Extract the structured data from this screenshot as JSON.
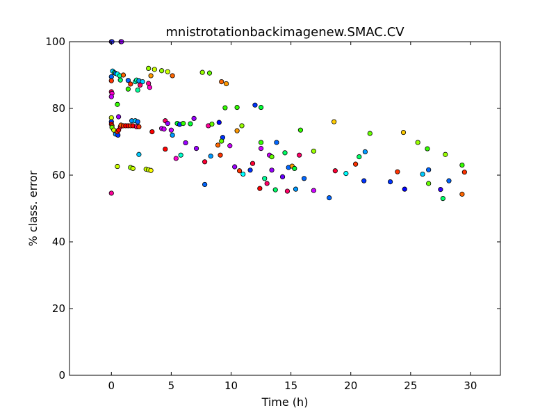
{
  "chart_data": {
    "type": "scatter",
    "title": "mnistrotationbackimagenew.SMAC.CV",
    "xlabel": "Time (h)",
    "ylabel": "% class. error",
    "xlim": [
      -3.5,
      32.5
    ],
    "ylim": [
      0,
      100
    ],
    "xticks": [
      0,
      5,
      10,
      15,
      20,
      25,
      30
    ],
    "yticks": [
      0,
      20,
      40,
      60,
      80,
      100
    ],
    "grid": false,
    "legend": "none",
    "points": [
      {
        "x": 0.0,
        "y": 100.0,
        "color": "#9900ff"
      },
      {
        "x": 0.05,
        "y": 100.0,
        "color": "#3333ff"
      },
      {
        "x": 0.8,
        "y": 100.0,
        "color": "#ff00cc"
      },
      {
        "x": 0.85,
        "y": 100.0,
        "color": "#9900ff"
      },
      {
        "x": 0.1,
        "y": 91.2,
        "color": "#00ccff"
      },
      {
        "x": 0.25,
        "y": 90.7,
        "color": "#00ff66"
      },
      {
        "x": 0.35,
        "y": 90.5,
        "color": "#0066ff"
      },
      {
        "x": 0.5,
        "y": 90.3,
        "color": "#00ffff"
      },
      {
        "x": 0.7,
        "y": 89.8,
        "color": "#00ff99"
      },
      {
        "x": 0.0,
        "y": 89.5,
        "color": "#0066ff"
      },
      {
        "x": 1.0,
        "y": 90.0,
        "color": "#ff6600"
      },
      {
        "x": 0.0,
        "y": 88.3,
        "color": "#ff3300"
      },
      {
        "x": 1.4,
        "y": 88.4,
        "color": "#0066ff"
      },
      {
        "x": 0.75,
        "y": 88.5,
        "color": "#00ff66"
      },
      {
        "x": 2.0,
        "y": 88.0,
        "color": "#00ffcc"
      },
      {
        "x": 2.1,
        "y": 88.5,
        "color": "#00ff99"
      },
      {
        "x": 2.3,
        "y": 88.3,
        "color": "#0099ff"
      },
      {
        "x": 2.6,
        "y": 88.0,
        "color": "#00ccff"
      },
      {
        "x": 1.6,
        "y": 87.3,
        "color": "#ff3300"
      },
      {
        "x": 2.4,
        "y": 87.0,
        "color": "#ff0066"
      },
      {
        "x": 3.1,
        "y": 87.5,
        "color": "#ff0099"
      },
      {
        "x": 3.2,
        "y": 86.3,
        "color": "#ff00cc"
      },
      {
        "x": 1.4,
        "y": 85.8,
        "color": "#33ff00"
      },
      {
        "x": 2.2,
        "y": 85.5,
        "color": "#00ff99"
      },
      {
        "x": 3.1,
        "y": 92.0,
        "color": "#99ff00"
      },
      {
        "x": 3.6,
        "y": 91.7,
        "color": "#ccff00"
      },
      {
        "x": 4.2,
        "y": 91.3,
        "color": "#99ff00"
      },
      {
        "x": 4.7,
        "y": 91.0,
        "color": "#ccff00"
      },
      {
        "x": 3.3,
        "y": 89.8,
        "color": "#ff9900"
      },
      {
        "x": 5.1,
        "y": 89.8,
        "color": "#ff6600"
      },
      {
        "x": 7.6,
        "y": 90.8,
        "color": "#99ff00"
      },
      {
        "x": 8.2,
        "y": 90.6,
        "color": "#66ff00"
      },
      {
        "x": 9.2,
        "y": 88.0,
        "color": "#ff6600"
      },
      {
        "x": 9.6,
        "y": 87.4,
        "color": "#ff9900"
      },
      {
        "x": 0.0,
        "y": 85.0,
        "color": "#ff0066"
      },
      {
        "x": 0.05,
        "y": 84.5,
        "color": "#ff00cc"
      },
      {
        "x": 0.0,
        "y": 83.5,
        "color": "#cc00ff"
      },
      {
        "x": 0.5,
        "y": 81.2,
        "color": "#33ff00"
      },
      {
        "x": 9.5,
        "y": 80.2,
        "color": "#33ff00"
      },
      {
        "x": 10.5,
        "y": 80.3,
        "color": "#33ff00"
      },
      {
        "x": 12.0,
        "y": 81.0,
        "color": "#0033ff"
      },
      {
        "x": 12.5,
        "y": 80.3,
        "color": "#00ff33"
      },
      {
        "x": 0.0,
        "y": 77.2,
        "color": "#ccff00"
      },
      {
        "x": 0.6,
        "y": 77.5,
        "color": "#9900ff"
      },
      {
        "x": 0.0,
        "y": 76.0,
        "color": "#0033ff"
      },
      {
        "x": 0.0,
        "y": 75.3,
        "color": "#ff0000"
      },
      {
        "x": 0.05,
        "y": 74.8,
        "color": "#ff3300"
      },
      {
        "x": 0.05,
        "y": 74.3,
        "color": "#66ff00"
      },
      {
        "x": 0.2,
        "y": 73.5,
        "color": "#ccff00"
      },
      {
        "x": 0.35,
        "y": 72.3,
        "color": "#0099ff"
      },
      {
        "x": 0.55,
        "y": 72.0,
        "color": "#0033ff"
      },
      {
        "x": 0.5,
        "y": 73.0,
        "color": "#ff3300"
      },
      {
        "x": 0.6,
        "y": 73.5,
        "color": "#ff0000"
      },
      {
        "x": 0.75,
        "y": 74.5,
        "color": "#ff0033"
      },
      {
        "x": 0.8,
        "y": 75.0,
        "color": "#ff6600"
      },
      {
        "x": 1.0,
        "y": 74.8,
        "color": "#ff3300"
      },
      {
        "x": 1.2,
        "y": 74.8,
        "color": "#ff0000"
      },
      {
        "x": 1.4,
        "y": 74.8,
        "color": "#ff0000"
      },
      {
        "x": 1.6,
        "y": 74.8,
        "color": "#ff3300"
      },
      {
        "x": 1.7,
        "y": 76.3,
        "color": "#0099ff"
      },
      {
        "x": 1.8,
        "y": 74.8,
        "color": "#ff0000"
      },
      {
        "x": 2.0,
        "y": 76.3,
        "color": "#00ccff"
      },
      {
        "x": 2.1,
        "y": 74.5,
        "color": "#ff0066"
      },
      {
        "x": 2.2,
        "y": 76.0,
        "color": "#0066ff"
      },
      {
        "x": 2.3,
        "y": 74.5,
        "color": "#ff3300"
      },
      {
        "x": 3.4,
        "y": 73.0,
        "color": "#ff0000"
      },
      {
        "x": 4.2,
        "y": 74.0,
        "color": "#cc00ff"
      },
      {
        "x": 4.4,
        "y": 73.8,
        "color": "#cc00ff"
      },
      {
        "x": 4.5,
        "y": 76.3,
        "color": "#ff0066"
      },
      {
        "x": 4.7,
        "y": 75.5,
        "color": "#9900ff"
      },
      {
        "x": 5.0,
        "y": 73.5,
        "color": "#cc00ff"
      },
      {
        "x": 5.1,
        "y": 72.0,
        "color": "#0099ff"
      },
      {
        "x": 5.5,
        "y": 75.5,
        "color": "#00ff33"
      },
      {
        "x": 5.7,
        "y": 75.2,
        "color": "#0033ff"
      },
      {
        "x": 6.0,
        "y": 75.5,
        "color": "#33ff00"
      },
      {
        "x": 6.6,
        "y": 75.4,
        "color": "#00ff33"
      },
      {
        "x": 6.9,
        "y": 77.0,
        "color": "#9900ff"
      },
      {
        "x": 8.1,
        "y": 74.8,
        "color": "#ff0099"
      },
      {
        "x": 8.4,
        "y": 75.3,
        "color": "#66ff00"
      },
      {
        "x": 9.0,
        "y": 75.8,
        "color": "#0000ff"
      },
      {
        "x": 9.3,
        "y": 71.3,
        "color": "#0033ff"
      },
      {
        "x": 9.2,
        "y": 70.2,
        "color": "#66ff00"
      },
      {
        "x": 8.9,
        "y": 69.0,
        "color": "#ff6600"
      },
      {
        "x": 10.5,
        "y": 73.3,
        "color": "#ff9900"
      },
      {
        "x": 10.9,
        "y": 74.8,
        "color": "#99ff00"
      },
      {
        "x": 4.5,
        "y": 67.8,
        "color": "#ff0000"
      },
      {
        "x": 5.4,
        "y": 65.0,
        "color": "#ff00cc"
      },
      {
        "x": 5.8,
        "y": 66.0,
        "color": "#00ffcc"
      },
      {
        "x": 6.2,
        "y": 69.7,
        "color": "#9900ff"
      },
      {
        "x": 7.1,
        "y": 68.0,
        "color": "#9900ff"
      },
      {
        "x": 2.3,
        "y": 66.2,
        "color": "#00ccff"
      },
      {
        "x": 7.8,
        "y": 64.0,
        "color": "#ff0033"
      },
      {
        "x": 8.3,
        "y": 65.7,
        "color": "#0099ff"
      },
      {
        "x": 9.1,
        "y": 66.0,
        "color": "#ff3300"
      },
      {
        "x": 9.9,
        "y": 68.8,
        "color": "#cc00ff"
      },
      {
        "x": 10.3,
        "y": 62.5,
        "color": "#9900ff"
      },
      {
        "x": 10.7,
        "y": 61.3,
        "color": "#ff3300"
      },
      {
        "x": 11.0,
        "y": 60.3,
        "color": "#00ffff"
      },
      {
        "x": 11.6,
        "y": 61.5,
        "color": "#0033ff"
      },
      {
        "x": 11.8,
        "y": 63.5,
        "color": "#ff0033"
      },
      {
        "x": 12.5,
        "y": 69.8,
        "color": "#33ff00"
      },
      {
        "x": 12.5,
        "y": 68.0,
        "color": "#cc00ff"
      },
      {
        "x": 12.4,
        "y": 56.0,
        "color": "#ff0000"
      },
      {
        "x": 12.8,
        "y": 59.0,
        "color": "#00ff99"
      },
      {
        "x": 13.0,
        "y": 57.5,
        "color": "#ff0066"
      },
      {
        "x": 13.2,
        "y": 66.0,
        "color": "#cc00ff"
      },
      {
        "x": 13.4,
        "y": 65.5,
        "color": "#66ff00"
      },
      {
        "x": 13.4,
        "y": 61.5,
        "color": "#9900ff"
      },
      {
        "x": 13.7,
        "y": 55.6,
        "color": "#00ff66"
      },
      {
        "x": 13.8,
        "y": 69.8,
        "color": "#0066ff"
      },
      {
        "x": 14.3,
        "y": 59.5,
        "color": "#6600ff"
      },
      {
        "x": 14.5,
        "y": 66.7,
        "color": "#00ff66"
      },
      {
        "x": 14.7,
        "y": 55.2,
        "color": "#ff0066"
      },
      {
        "x": 14.8,
        "y": 62.3,
        "color": "#0066ff"
      },
      {
        "x": 15.1,
        "y": 62.7,
        "color": "#ff9900"
      },
      {
        "x": 15.3,
        "y": 62.0,
        "color": "#00ff33"
      },
      {
        "x": 15.4,
        "y": 55.8,
        "color": "#0099ff"
      },
      {
        "x": 15.7,
        "y": 66.0,
        "color": "#ff0066"
      },
      {
        "x": 15.8,
        "y": 73.5,
        "color": "#33ff00"
      },
      {
        "x": 16.1,
        "y": 59.0,
        "color": "#0066ff"
      },
      {
        "x": 16.9,
        "y": 55.4,
        "color": "#cc00ff"
      },
      {
        "x": 16.9,
        "y": 67.2,
        "color": "#99ff00"
      },
      {
        "x": 18.2,
        "y": 53.2,
        "color": "#0066ff"
      },
      {
        "x": 18.6,
        "y": 76.0,
        "color": "#ffcc00"
      },
      {
        "x": 18.7,
        "y": 61.3,
        "color": "#ff0033"
      },
      {
        "x": 19.6,
        "y": 60.5,
        "color": "#00ffff"
      },
      {
        "x": 20.4,
        "y": 63.3,
        "color": "#ff3300"
      },
      {
        "x": 20.7,
        "y": 65.5,
        "color": "#00ff66"
      },
      {
        "x": 21.1,
        "y": 58.3,
        "color": "#0033ff"
      },
      {
        "x": 21.2,
        "y": 67.0,
        "color": "#0099ff"
      },
      {
        "x": 21.6,
        "y": 72.5,
        "color": "#66ff00"
      },
      {
        "x": 23.3,
        "y": 58.0,
        "color": "#0033ff"
      },
      {
        "x": 23.9,
        "y": 61.0,
        "color": "#ff3300"
      },
      {
        "x": 24.4,
        "y": 72.8,
        "color": "#ffcc00"
      },
      {
        "x": 24.5,
        "y": 55.8,
        "color": "#0000ff"
      },
      {
        "x": 25.6,
        "y": 69.8,
        "color": "#99ff00"
      },
      {
        "x": 26.0,
        "y": 60.3,
        "color": "#00ccff"
      },
      {
        "x": 26.4,
        "y": 67.9,
        "color": "#33ff00"
      },
      {
        "x": 26.5,
        "y": 61.6,
        "color": "#0066ff"
      },
      {
        "x": 26.5,
        "y": 57.5,
        "color": "#66ff00"
      },
      {
        "x": 27.5,
        "y": 55.7,
        "color": "#3300ff"
      },
      {
        "x": 27.7,
        "y": 53.0,
        "color": "#00ff66"
      },
      {
        "x": 27.9,
        "y": 66.2,
        "color": "#99ff00"
      },
      {
        "x": 28.2,
        "y": 58.3,
        "color": "#0066ff"
      },
      {
        "x": 29.3,
        "y": 63.0,
        "color": "#33ff00"
      },
      {
        "x": 29.3,
        "y": 54.3,
        "color": "#ff6600"
      },
      {
        "x": 29.5,
        "y": 60.9,
        "color": "#ff3300"
      },
      {
        "x": 0.0,
        "y": 54.6,
        "color": "#ff0099"
      },
      {
        "x": 0.5,
        "y": 62.6,
        "color": "#ccff00"
      },
      {
        "x": 1.6,
        "y": 62.3,
        "color": "#99ff00"
      },
      {
        "x": 1.8,
        "y": 62.0,
        "color": "#ccff00"
      },
      {
        "x": 2.9,
        "y": 61.8,
        "color": "#ccff00"
      },
      {
        "x": 3.1,
        "y": 61.6,
        "color": "#ccff00"
      },
      {
        "x": 3.3,
        "y": 61.4,
        "color": "#ffff00"
      },
      {
        "x": 7.8,
        "y": 57.2,
        "color": "#0066ff"
      }
    ]
  }
}
